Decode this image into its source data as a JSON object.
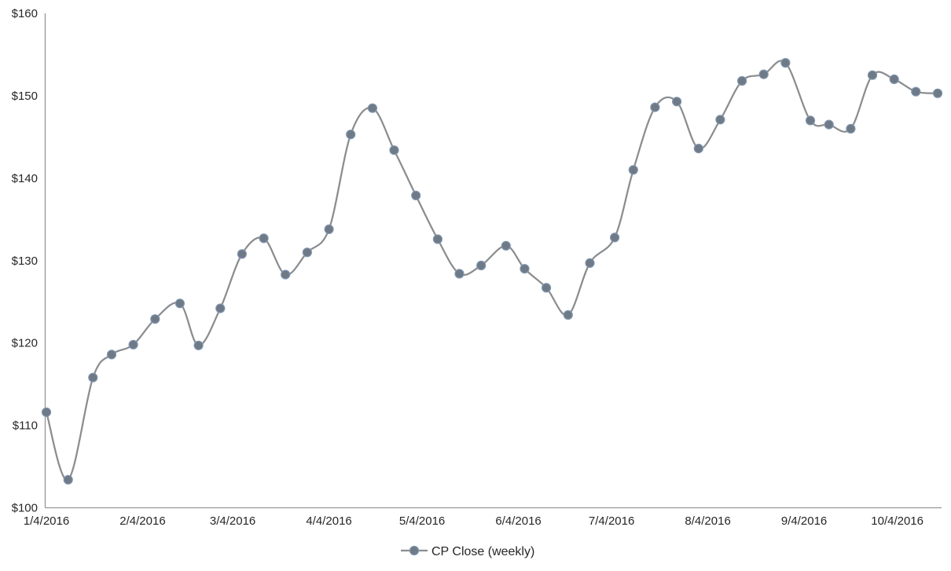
{
  "chart_data": {
    "type": "line",
    "title": "",
    "legend": "CP Close (weekly)",
    "series": [
      {
        "name": "CP Close (weekly)",
        "x_dates": [
          "1/4/2016",
          "1/11/2016",
          "1/19/2016",
          "1/25/2016",
          "2/1/2016",
          "2/8/2016",
          "2/16/2016",
          "2/22/2016",
          "2/29/2016",
          "3/7/2016",
          "3/14/2016",
          "3/21/2016",
          "3/28/2016",
          "4/4/2016",
          "4/11/2016",
          "4/18/2016",
          "4/25/2016",
          "5/2/2016",
          "5/9/2016",
          "5/16/2016",
          "5/23/2016",
          "5/31/2016",
          "6/6/2016",
          "6/13/2016",
          "6/20/2016",
          "6/27/2016",
          "7/5/2016",
          "7/11/2016",
          "7/18/2016",
          "7/25/2016",
          "8/1/2016",
          "8/8/2016",
          "8/15/2016",
          "8/22/2016",
          "8/29/2016",
          "9/6/2016",
          "9/12/2016",
          "9/19/2016",
          "9/26/2016",
          "10/3/2016",
          "10/10/2016",
          "10/17/2016"
        ],
        "values": [
          111.6,
          103.4,
          115.8,
          118.6,
          119.8,
          122.9,
          124.8,
          119.7,
          124.2,
          130.8,
          132.7,
          128.3,
          131.0,
          133.8,
          145.3,
          148.5,
          143.4,
          137.9,
          132.6,
          128.4,
          129.4,
          131.8,
          129.0,
          126.7,
          123.4,
          129.7,
          132.8,
          141.0,
          148.6,
          149.3,
          143.6,
          147.1,
          151.8,
          152.6,
          154.0,
          147.0,
          146.5,
          146.0,
          152.5,
          152.0,
          150.5,
          150.3
        ]
      }
    ],
    "xlabel": "",
    "ylabel": "",
    "x_tick_labels": [
      "1/4/2016",
      "2/4/2016",
      "3/4/2016",
      "4/4/2016",
      "5/4/2016",
      "6/4/2016",
      "7/4/2016",
      "8/4/2016",
      "9/4/2016",
      "10/4/2016"
    ],
    "y_tick_labels": [
      "$100",
      "$110",
      "$120",
      "$130",
      "$140",
      "$150",
      "$160"
    ],
    "ylim": [
      100,
      160
    ],
    "y_tick_step": 10,
    "x_axis_type": "date",
    "grid": "off",
    "legend_position": "bottom-center",
    "line_style": "smoothed-with-markers",
    "colors": {
      "line": "#8a8d90",
      "marker_fill": "#6f7a87",
      "marker_stroke": "#7f94ae",
      "axis_line": "#969696",
      "tick_label": "#262626",
      "legend_text": "#262626",
      "background": "#ffffff"
    }
  }
}
